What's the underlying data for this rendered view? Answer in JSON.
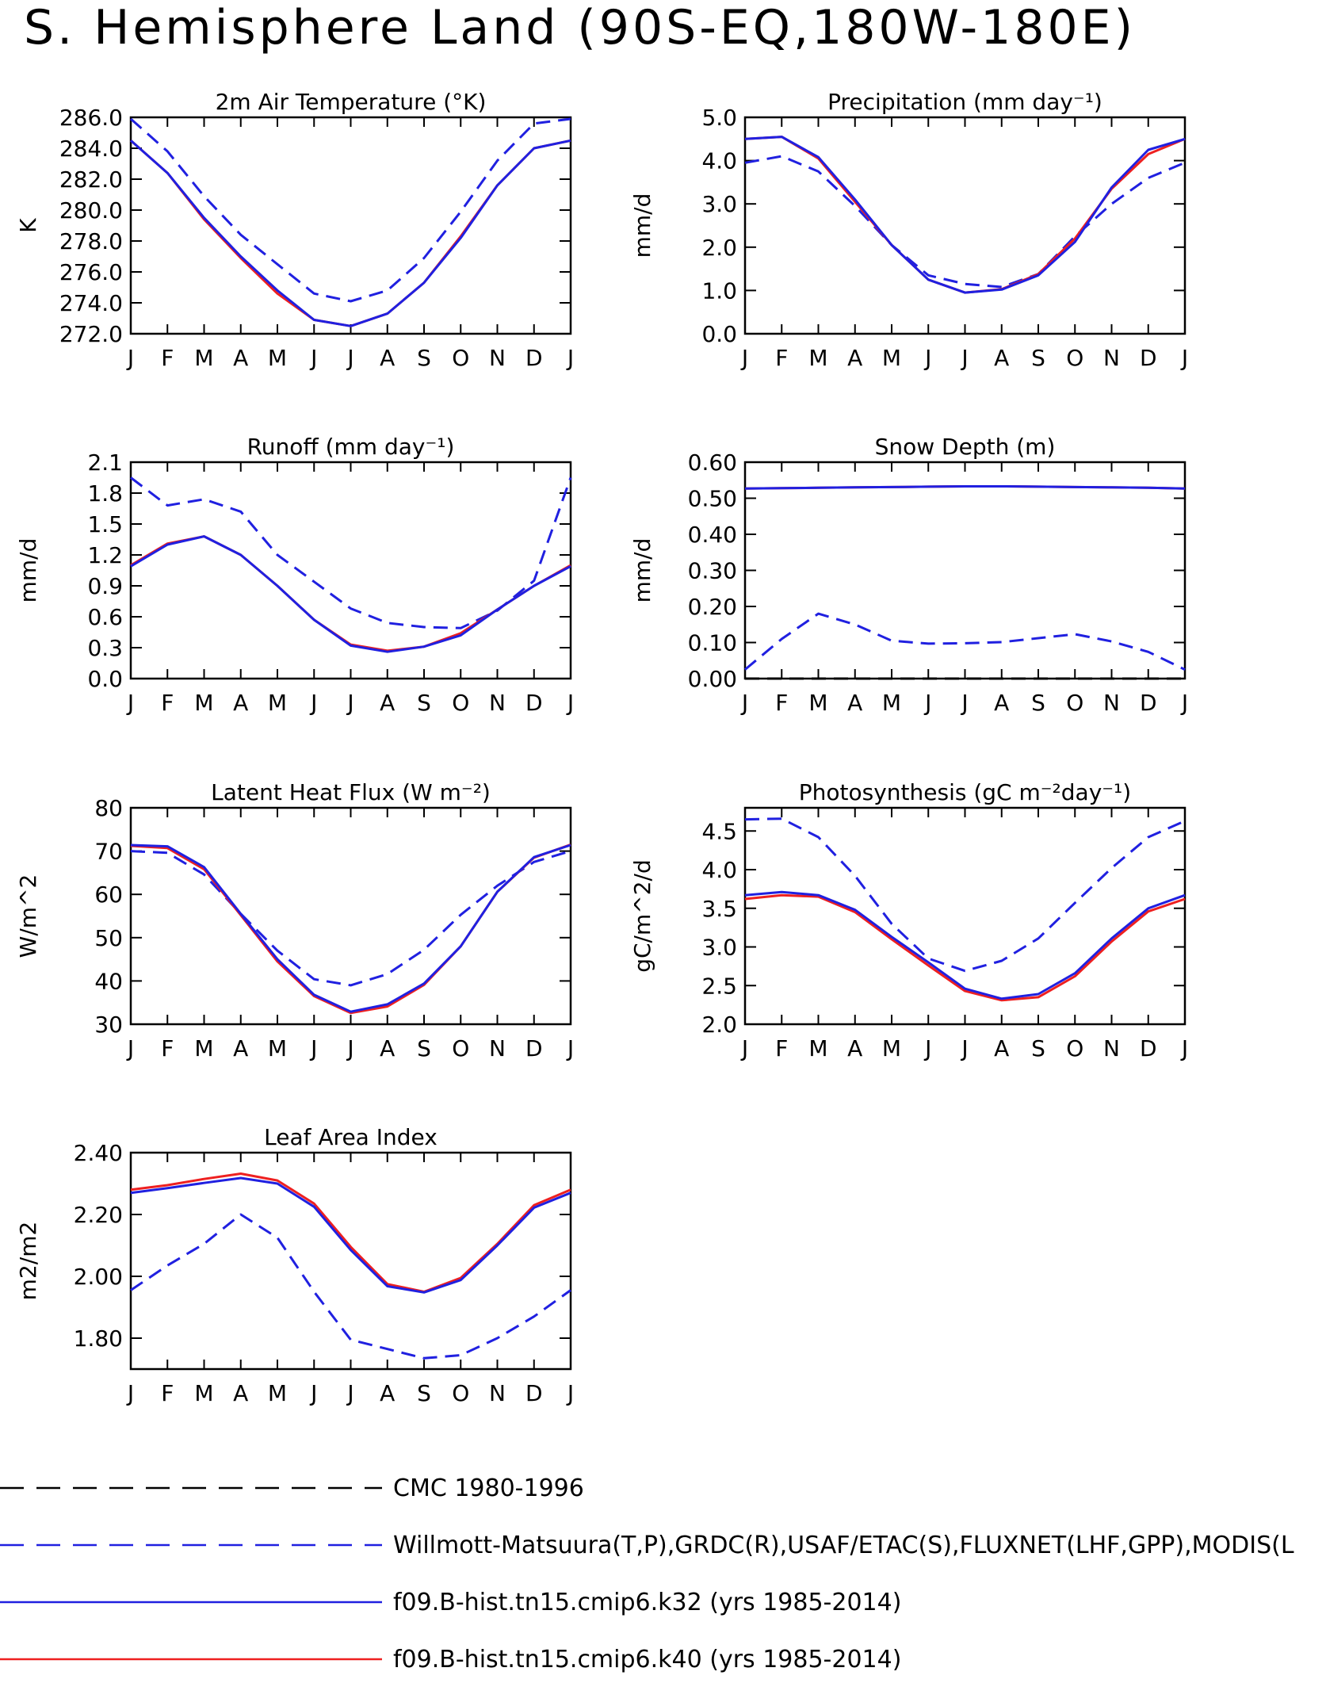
{
  "title": "S. Hemisphere Land (90S-EQ,180W-180E)",
  "months": [
    "J",
    "F",
    "M",
    "A",
    "M",
    "J",
    "J",
    "A",
    "S",
    "O",
    "N",
    "D",
    "J"
  ],
  "colors": {
    "model_a": "#2020e0",
    "model_b": "#ee2020",
    "obs": "#2020e0",
    "cmc": "#000000"
  },
  "legend": [
    {
      "label": "CMC 1980-1996",
      "style": "dashed",
      "color": "#000000"
    },
    {
      "label": "Willmott-Matsuura(T,P),GRDC(R),USAF/ETAC(S),FLUXNET(LHF,GPP),MODIS(L",
      "style": "dashed",
      "color": "#2020e0"
    },
    {
      "label": "f09.B-hist.tn15.cmip6.k32 (yrs 1985-2014)",
      "style": "solid",
      "color": "#2020e0"
    },
    {
      "label": "f09.B-hist.tn15.cmip6.k40 (yrs 1985-2014)",
      "style": "solid",
      "color": "#ee2020"
    }
  ],
  "chart_data": [
    {
      "type": "line",
      "title": "2m Air Temperature (°K)",
      "ylabel": "K",
      "ylim": [
        272,
        286
      ],
      "yticks": [
        "272.0",
        "274.0",
        "276.0",
        "278.0",
        "280.0",
        "282.0",
        "284.0",
        "286.0"
      ],
      "x": [
        "J",
        "F",
        "M",
        "A",
        "M",
        "J",
        "J",
        "A",
        "S",
        "O",
        "N",
        "D",
        "J"
      ],
      "series": [
        {
          "name": "Willmott-Matsuura(T,P),GRDC(R),USAF/ETAC(S),FLUXNET(LHF,GPP),MODIS(L",
          "style": "dashed",
          "color": "#2020e0",
          "values": [
            285.9,
            283.8,
            280.9,
            278.4,
            276.5,
            274.6,
            274.1,
            274.8,
            276.9,
            279.9,
            283.2,
            285.6,
            285.9
          ]
        },
        {
          "name": "f09.B-hist.tn15.cmip6.k40 (yrs 1985-2014)",
          "style": "solid",
          "color": "#ee2020",
          "values": [
            284.5,
            282.4,
            279.4,
            276.9,
            274.6,
            272.9,
            272.5,
            273.3,
            275.3,
            278.3,
            281.6,
            284.0,
            284.5
          ]
        },
        {
          "name": "f09.B-hist.tn15.cmip6.k32 (yrs 1985-2014)",
          "style": "solid",
          "color": "#2020e0",
          "values": [
            284.5,
            282.4,
            279.5,
            277.0,
            274.8,
            272.9,
            272.5,
            273.3,
            275.3,
            278.2,
            281.6,
            284.0,
            284.5
          ]
        }
      ]
    },
    {
      "type": "line",
      "title": "Precipitation (mm day⁻¹)",
      "ylabel": "mm/d",
      "ylim": [
        0,
        5
      ],
      "yticks": [
        "0.0",
        "1.0",
        "2.0",
        "3.0",
        "4.0",
        "5.0"
      ],
      "x": [
        "J",
        "F",
        "M",
        "A",
        "M",
        "J",
        "J",
        "A",
        "S",
        "O",
        "N",
        "D",
        "J"
      ],
      "series": [
        {
          "name": "Willmott-Matsuura(T,P),GRDC(R),USAF/ETAC(S),FLUXNET(LHF,GPP),MODIS(L",
          "style": "dashed",
          "color": "#2020e0",
          "values": [
            3.95,
            4.1,
            3.75,
            2.95,
            2.05,
            1.35,
            1.15,
            1.08,
            1.38,
            2.25,
            3.0,
            3.6,
            3.95
          ]
        },
        {
          "name": "f09.B-hist.tn15.cmip6.k40 (yrs 1985-2014)",
          "style": "solid",
          "color": "#ee2020",
          "values": [
            4.5,
            4.55,
            4.05,
            3.05,
            2.05,
            1.25,
            0.95,
            1.03,
            1.38,
            2.2,
            3.35,
            4.15,
            4.5
          ]
        },
        {
          "name": "f09.B-hist.tn15.cmip6.k32 (yrs 1985-2014)",
          "style": "solid",
          "color": "#2020e0",
          "values": [
            4.5,
            4.55,
            4.08,
            3.1,
            2.05,
            1.25,
            0.95,
            1.02,
            1.35,
            2.12,
            3.38,
            4.25,
            4.5
          ]
        }
      ]
    },
    {
      "type": "line",
      "title": "Runoff (mm day⁻¹)",
      "ylabel": "mm/d",
      "ylim": [
        0,
        2.1
      ],
      "yticks": [
        "0.0",
        "0.3",
        "0.6",
        "0.9",
        "1.2",
        "1.5",
        "1.8",
        "2.1"
      ],
      "x": [
        "J",
        "F",
        "M",
        "A",
        "M",
        "J",
        "J",
        "A",
        "S",
        "O",
        "N",
        "D",
        "J"
      ],
      "series": [
        {
          "name": "Willmott-Matsuura(T,P),GRDC(R),USAF/ETAC(S),FLUXNET(LHF,GPP),MODIS(L",
          "style": "dashed",
          "color": "#2020e0",
          "values": [
            1.95,
            1.68,
            1.74,
            1.62,
            1.2,
            0.94,
            0.68,
            0.54,
            0.5,
            0.49,
            0.66,
            0.95,
            1.95
          ]
        },
        {
          "name": "f09.B-hist.tn15.cmip6.k40 (yrs 1985-2014)",
          "style": "solid",
          "color": "#ee2020",
          "values": [
            1.1,
            1.31,
            1.38,
            1.2,
            0.9,
            0.57,
            0.33,
            0.27,
            0.31,
            0.44,
            0.67,
            0.9,
            1.1
          ]
        },
        {
          "name": "f09.B-hist.tn15.cmip6.k32 (yrs 1985-2014)",
          "style": "solid",
          "color": "#2020e0",
          "values": [
            1.09,
            1.3,
            1.38,
            1.2,
            0.9,
            0.57,
            0.32,
            0.26,
            0.31,
            0.42,
            0.67,
            0.9,
            1.09
          ]
        }
      ]
    },
    {
      "type": "line",
      "title": "Snow Depth (m)",
      "ylabel": "mm/d",
      "ylim": [
        0,
        0.6
      ],
      "yticks": [
        "0.00",
        "0.10",
        "0.20",
        "0.30",
        "0.40",
        "0.50",
        "0.60"
      ],
      "x": [
        "J",
        "F",
        "M",
        "A",
        "M",
        "J",
        "J",
        "A",
        "S",
        "O",
        "N",
        "D",
        "J"
      ],
      "series": [
        {
          "name": "CMC 1980-1996",
          "style": "dashed",
          "color": "#000000",
          "values": [
            0.0,
            0.0,
            0.0,
            0.0,
            0.0,
            0.0,
            0.0,
            0.0,
            0.0,
            0.0,
            0.0,
            0.0,
            0.0
          ]
        },
        {
          "name": "Willmott-Matsuura(T,P),GRDC(R),USAF/ETAC(S),FLUXNET(LHF,GPP),MODIS(L",
          "style": "dashed",
          "color": "#2020e0",
          "values": [
            0.025,
            0.11,
            0.18,
            0.15,
            0.105,
            0.097,
            0.098,
            0.101,
            0.112,
            0.123,
            0.103,
            0.074,
            0.025
          ]
        },
        {
          "name": "f09.B-hist.tn15.cmip6.k40 (yrs 1985-2014)",
          "style": "solid",
          "color": "#ee2020",
          "values": [
            0.527,
            0.528,
            0.529,
            0.53,
            0.531,
            0.532,
            0.533,
            0.533,
            0.532,
            0.531,
            0.53,
            0.529,
            0.527
          ]
        },
        {
          "name": "f09.B-hist.tn15.cmip6.k32 (yrs 1985-2014)",
          "style": "solid",
          "color": "#2020e0",
          "values": [
            0.527,
            0.528,
            0.529,
            0.53,
            0.531,
            0.532,
            0.533,
            0.533,
            0.532,
            0.531,
            0.53,
            0.529,
            0.527
          ]
        }
      ]
    },
    {
      "type": "line",
      "title": "Latent Heat Flux (W m⁻²)",
      "ylabel": "W/m^2",
      "ylim": [
        30,
        80
      ],
      "yticks": [
        "30",
        "40",
        "50",
        "60",
        "70",
        "80"
      ],
      "x": [
        "J",
        "F",
        "M",
        "A",
        "M",
        "J",
        "J",
        "A",
        "S",
        "O",
        "N",
        "D",
        "J"
      ],
      "series": [
        {
          "name": "Willmott-Matsuura(T,P),GRDC(R),USAF/ETAC(S),FLUXNET(LHF,GPP),MODIS(L",
          "style": "dashed",
          "color": "#2020e0",
          "values": [
            70.0,
            69.6,
            64.6,
            55.5,
            47.0,
            40.4,
            39.0,
            41.6,
            47.2,
            55.3,
            62.0,
            67.5,
            70.0
          ]
        },
        {
          "name": "f09.B-hist.tn15.cmip6.k40 (yrs 1985-2014)",
          "style": "solid",
          "color": "#ee2020",
          "values": [
            71.2,
            70.7,
            65.8,
            55.2,
            44.5,
            36.5,
            32.6,
            34.1,
            39.1,
            48.0,
            60.6,
            68.5,
            71.5
          ]
        },
        {
          "name": "f09.B-hist.tn15.cmip6.k32 (yrs 1985-2014)",
          "style": "solid",
          "color": "#2020e0",
          "values": [
            71.4,
            71.1,
            66.3,
            55.5,
            45.0,
            36.8,
            32.9,
            34.6,
            39.4,
            48.0,
            60.6,
            68.6,
            71.4
          ]
        }
      ]
    },
    {
      "type": "line",
      "title": "Photosynthesis (gC m⁻²day⁻¹)",
      "ylabel": "gC/m^2/d",
      "ylim": [
        2.0,
        4.8
      ],
      "yticks": [
        "2.0",
        "2.5",
        "3.0",
        "3.5",
        "4.0",
        "4.5"
      ],
      "x": [
        "J",
        "F",
        "M",
        "A",
        "M",
        "J",
        "J",
        "A",
        "S",
        "O",
        "N",
        "D",
        "J"
      ],
      "series": [
        {
          "name": "Willmott-Matsuura(T,P),GRDC(R),USAF/ETAC(S),FLUXNET(LHF,GPP),MODIS(L",
          "style": "dashed",
          "color": "#2020e0",
          "values": [
            4.65,
            4.66,
            4.42,
            3.92,
            3.3,
            2.85,
            2.69,
            2.82,
            3.11,
            3.57,
            4.02,
            4.42,
            4.63
          ]
        },
        {
          "name": "f09.B-hist.tn15.cmip6.k40 (yrs 1985-2014)",
          "style": "solid",
          "color": "#ee2020",
          "values": [
            3.62,
            3.67,
            3.65,
            3.45,
            3.1,
            2.76,
            2.43,
            2.31,
            2.35,
            2.62,
            3.07,
            3.46,
            3.62
          ]
        },
        {
          "name": "f09.B-hist.tn15.cmip6.k32 (yrs 1985-2014)",
          "style": "solid",
          "color": "#2020e0",
          "values": [
            3.67,
            3.71,
            3.67,
            3.48,
            3.13,
            2.8,
            2.46,
            2.33,
            2.39,
            2.66,
            3.11,
            3.5,
            3.67
          ]
        }
      ]
    },
    {
      "type": "line",
      "title": "Leaf Area Index",
      "ylabel": "m2/m2",
      "ylim": [
        1.7,
        2.4
      ],
      "yticks": [
        "1.80",
        "2.00",
        "2.20",
        "2.40"
      ],
      "x": [
        "J",
        "F",
        "M",
        "A",
        "M",
        "J",
        "J",
        "A",
        "S",
        "O",
        "N",
        "D",
        "J"
      ],
      "series": [
        {
          "name": "Willmott-Matsuura(T,P),GRDC(R),USAF/ETAC(S),FLUXNET(LHF,GPP),MODIS(L",
          "style": "dashed",
          "color": "#2020e0",
          "values": [
            1.955,
            2.035,
            2.105,
            2.2,
            2.125,
            1.95,
            1.795,
            1.765,
            1.735,
            1.745,
            1.8,
            1.87,
            1.955
          ]
        },
        {
          "name": "f09.B-hist.tn15.cmip6.k40 (yrs 1985-2014)",
          "style": "solid",
          "color": "#ee2020",
          "values": [
            2.28,
            2.295,
            2.315,
            2.332,
            2.31,
            2.235,
            2.095,
            1.975,
            1.95,
            1.995,
            2.105,
            2.23,
            2.28
          ]
        },
        {
          "name": "f09.B-hist.tn15.cmip6.k32 (yrs 1985-2014)",
          "style": "solid",
          "color": "#2020e0",
          "values": [
            2.27,
            2.285,
            2.302,
            2.318,
            2.3,
            2.225,
            2.085,
            1.968,
            1.948,
            1.988,
            2.1,
            2.222,
            2.27
          ]
        }
      ]
    }
  ]
}
